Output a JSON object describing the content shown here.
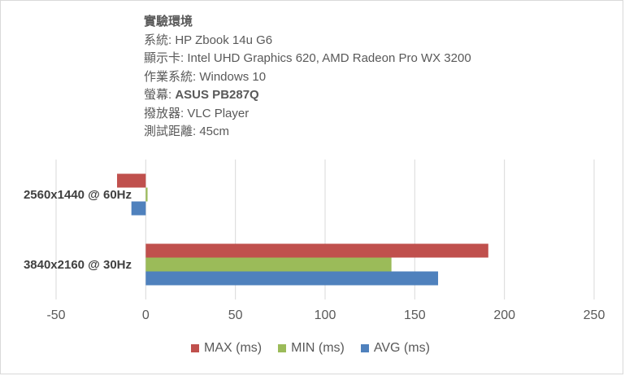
{
  "info": {
    "title": "實驗環境",
    "lines": [
      {
        "label": "系統: ",
        "value": "HP Zbook 14u G6",
        "bold": false
      },
      {
        "label": "顯示卡: ",
        "value": "Intel UHD Graphics 620, AMD Radeon Pro WX 3200",
        "bold": false
      },
      {
        "label": "作業系統: ",
        "value": "Windows 10",
        "bold": false
      },
      {
        "label": "螢幕: ",
        "value": "ASUS PB287Q",
        "bold": true
      },
      {
        "label": "撥放器: ",
        "value": "VLC Player",
        "bold": false
      },
      {
        "label": "測試距離: ",
        "value": "45cm",
        "bold": false
      }
    ]
  },
  "chart_data": {
    "type": "bar",
    "orientation": "horizontal",
    "categories": [
      "2560x1440 @ 60Hz",
      "3840x2160 @ 30Hz"
    ],
    "series": [
      {
        "name": "MAX (ms)",
        "color": "#c0504d",
        "values": [
          -16,
          191
        ]
      },
      {
        "name": "MIN (ms)",
        "color": "#9bbb59",
        "values": [
          1,
          137
        ]
      },
      {
        "name": "AVG (ms)",
        "color": "#4f81bd",
        "values": [
          -8,
          163
        ]
      }
    ],
    "xlim": [
      -50,
      250
    ],
    "xticks": [
      -50,
      0,
      50,
      100,
      150,
      200,
      250
    ],
    "grid": true,
    "legend_position": "bottom"
  }
}
